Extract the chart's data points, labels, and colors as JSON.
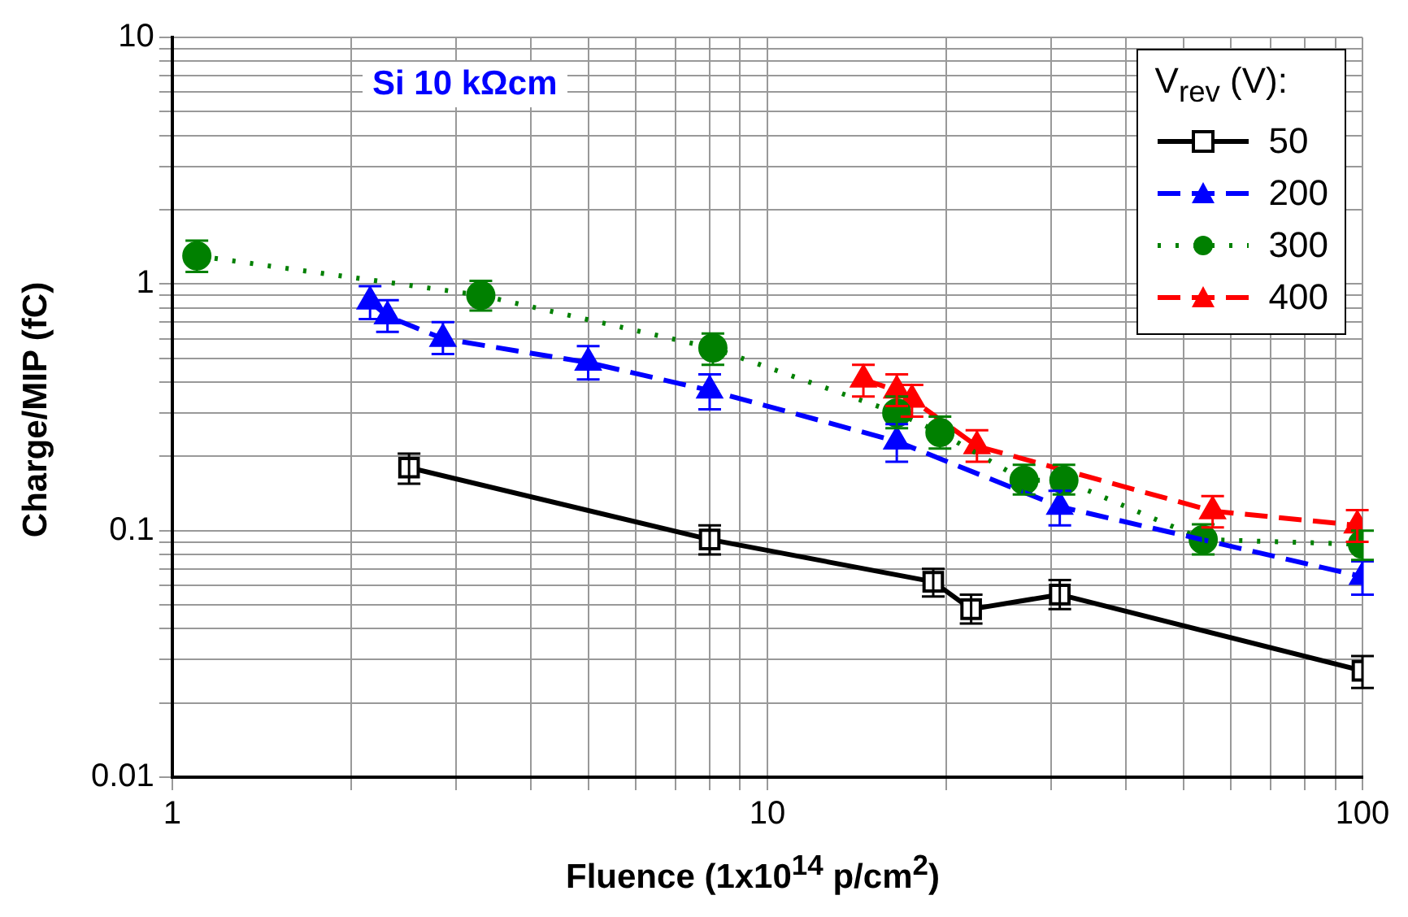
{
  "chart_data": {
    "type": "line",
    "xlabel": "Fluence (1x10$^{14}$ p/cm$^{2}$)",
    "ylabel": "Charge/MIP (fC)",
    "legend_title": "V$_{rev}$ (V):",
    "annotations": [
      "Si 10 kΩcm"
    ],
    "log": "xy",
    "grid": true,
    "legend": "top right",
    "xlim": [
      1,
      100
    ],
    "ylim": [
      0.01,
      10
    ],
    "xticks": [
      1,
      {
        "value": 2,
        "label": null
      },
      {
        "value": 3,
        "label": null
      },
      {
        "value": 4,
        "label": null
      },
      {
        "value": 5,
        "label": null
      },
      {
        "value": 6,
        "label": null
      },
      {
        "value": 7,
        "label": null
      },
      {
        "value": 8,
        "label": null
      },
      {
        "value": 9,
        "label": null
      },
      10,
      {
        "value": 20,
        "label": null
      },
      {
        "value": 30,
        "label": null
      },
      {
        "value": 40,
        "label": null
      },
      {
        "value": 50,
        "label": null
      },
      {
        "value": 60,
        "label": null
      },
      {
        "value": 70,
        "label": null
      },
      {
        "value": 80,
        "label": null
      },
      {
        "value": 90,
        "label": null
      },
      100
    ],
    "yticks": [
      0.01,
      {
        "value": 0.02,
        "label": null
      },
      {
        "value": 0.03,
        "label": null
      },
      {
        "value": 0.04,
        "label": null
      },
      {
        "value": 0.05,
        "label": null
      },
      {
        "value": 0.06,
        "label": null
      },
      {
        "value": 0.07,
        "label": null
      },
      {
        "value": 0.08,
        "label": null
      },
      {
        "value": 0.09,
        "label": null
      },
      0.1,
      {
        "value": 0.2,
        "label": null
      },
      {
        "value": 0.3,
        "label": null
      },
      {
        "value": 0.4,
        "label": null
      },
      {
        "value": 0.5,
        "label": null
      },
      {
        "value": 0.6,
        "label": null
      },
      {
        "value": 0.7,
        "label": null
      },
      {
        "value": 0.8,
        "label": null
      },
      {
        "value": 0.9,
        "label": null
      },
      1,
      {
        "value": 2,
        "label": null
      },
      {
        "value": 3,
        "label": null
      },
      {
        "value": 4,
        "label": null
      },
      {
        "value": 5,
        "label": null
      },
      {
        "value": 6,
        "label": null
      },
      {
        "value": 7,
        "label": null
      },
      {
        "value": 8,
        "label": null
      },
      {
        "value": 9,
        "label": null
      },
      10
    ],
    "series": [
      {
        "name": "50",
        "color": "#000000",
        "marker": "square",
        "line_style": "solid",
        "x": [
          2.5,
          8,
          19,
          22,
          31,
          100
        ],
        "values": [
          0.18,
          0.092,
          0.062,
          0.048,
          0.055,
          0.027
        ],
        "errors": [
          [
            0.155,
            0.205
          ],
          [
            0.08,
            0.105
          ],
          [
            0.054,
            0.07
          ],
          [
            0.042,
            0.055
          ],
          [
            0.048,
            0.063
          ],
          [
            0.023,
            0.031
          ]
        ]
      },
      {
        "name": "200",
        "color": "#0000ff",
        "marker": "triangle",
        "line_style": "dashed",
        "x": [
          2.15,
          2.3,
          2.85,
          5,
          8,
          16.5,
          31,
          100
        ],
        "values": [
          0.85,
          0.74,
          0.6,
          0.48,
          0.37,
          0.23,
          0.125,
          0.065
        ],
        "errors": [
          [
            0.72,
            0.98
          ],
          [
            0.64,
            0.86
          ],
          [
            0.52,
            0.7
          ],
          [
            0.41,
            0.56
          ],
          [
            0.31,
            0.43
          ],
          [
            0.19,
            0.27
          ],
          [
            0.105,
            0.145
          ],
          [
            0.055,
            0.075
          ]
        ]
      },
      {
        "name": "300",
        "color": "#008000",
        "marker": "circle",
        "line_style": "dotted",
        "x": [
          1.1,
          3.3,
          8.1,
          16.5,
          19.5,
          27,
          31.5,
          54,
          100
        ],
        "values": [
          1.3,
          0.9,
          0.55,
          0.3,
          0.25,
          0.16,
          0.16,
          0.092,
          0.088
        ],
        "errors": [
          [
            1.12,
            1.5
          ],
          [
            0.78,
            1.03
          ],
          [
            0.47,
            0.63
          ],
          [
            0.26,
            0.35
          ],
          [
            0.215,
            0.29
          ],
          [
            0.14,
            0.185
          ],
          [
            0.14,
            0.185
          ],
          [
            0.08,
            0.106
          ],
          [
            0.076,
            0.1
          ]
        ]
      },
      {
        "name": "400",
        "color": "#ff0000",
        "marker": "triangle",
        "line_style": "dashed",
        "x": [
          14.5,
          16.5,
          17.5,
          22.5,
          56,
          98
        ],
        "values": [
          0.41,
          0.37,
          0.34,
          0.22,
          0.12,
          0.105
        ],
        "errors": [
          [
            0.35,
            0.47
          ],
          [
            0.32,
            0.43
          ],
          [
            0.29,
            0.39
          ],
          [
            0.19,
            0.255
          ],
          [
            0.103,
            0.138
          ],
          [
            0.09,
            0.121
          ]
        ]
      }
    ]
  }
}
